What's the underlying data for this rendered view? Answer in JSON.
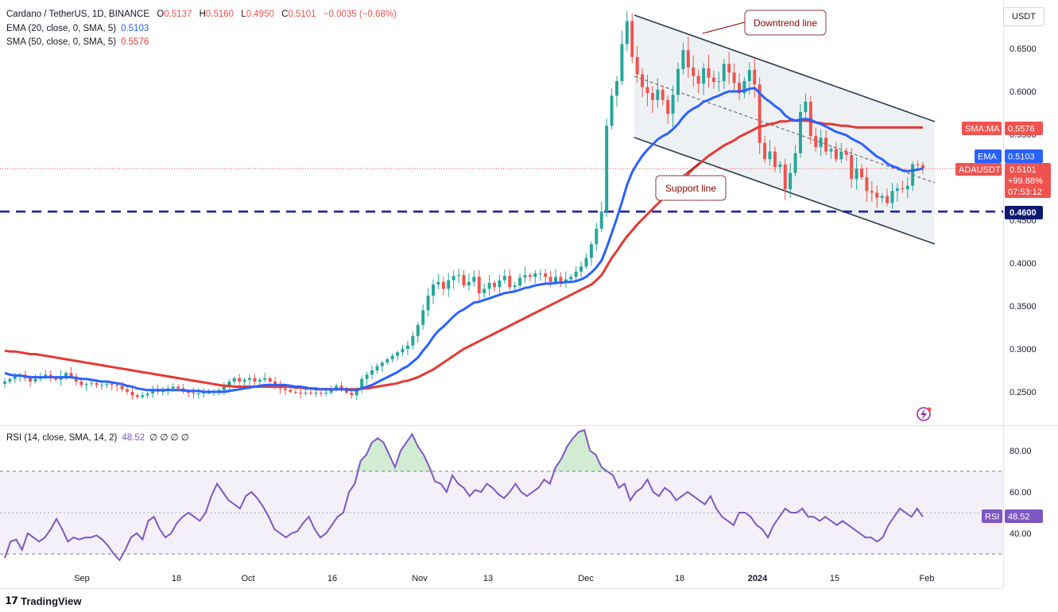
{
  "legend": {
    "symbol": "Cardano / TetherUS, 1D, BINANCE",
    "o_label": "O",
    "o": "0.5137",
    "h_label": "H",
    "h": "0.5160",
    "l_label": "L",
    "l": "0.4950",
    "c_label": "C",
    "c": "0.5101",
    "change": "−0.0035 (−0.68%)",
    "ema_name": "EMA (20, close, 0, SMA, 5)",
    "ema_value": "0.5103",
    "sma_name": "SMA (50, close, 0, SMA, 5)",
    "sma_value": "0.5576",
    "rsi_name": "RSI (14, close, SMA, 14, 2)",
    "rsi_value": "48.52",
    "rsi_extra": "∅ ∅ ∅ ∅"
  },
  "currency_label": "USDT",
  "branding": "TradingView",
  "colors": {
    "up": "#26a69a",
    "down": "#ef5350",
    "ema": "#2962ff",
    "sma": "#e53935",
    "rsi": "#7e57c2",
    "support": "#1e22aa",
    "channel": "#2c3e50"
  },
  "annotations": {
    "downtrend": "Downtrend line",
    "support": "Support line"
  },
  "price_tags": {
    "sma_label": "SMA:MA",
    "sma_value": "0.5576",
    "ema_label": "EMA",
    "ema_value": "0.5103",
    "sym_label": "ADAUSDT",
    "sym_value": "0.5101",
    "sym_change": "+99.88%",
    "sym_timer": "07:53:12",
    "level_value": "0.4600",
    "rsi_label": "RSI",
    "rsi_value": "48.52"
  },
  "chart_data": {
    "type": "candlestick",
    "price_axis": {
      "ticks": [
        "0.6500",
        "0.6000",
        "0.5500",
        "0.5000",
        "0.4500",
        "0.4000",
        "0.3500",
        "0.3000",
        "0.2500"
      ],
      "range": [
        0.21,
        0.7
      ]
    },
    "rsi_axis": {
      "ticks": [
        "80.00",
        "60.00",
        "40.00"
      ],
      "range": [
        25,
        92
      ],
      "bands": [
        30,
        70
      ],
      "mid": 50
    },
    "time_axis": [
      "Sep",
      "18",
      "Oct",
      "16",
      "Nov",
      "13",
      "Dec",
      "18",
      "2024",
      "15",
      "Feb"
    ],
    "horizontal_level": 0.46,
    "channel": {
      "upper": [
        [
          "Dec 9",
          0.69
        ],
        [
          "Feb 1",
          0.57
        ]
      ],
      "lower": [
        [
          "Dec 9",
          0.545
        ],
        [
          "Feb 1",
          0.425
        ]
      ]
    },
    "close": [
      0.262,
      0.265,
      0.268,
      0.27,
      0.266,
      0.262,
      0.265,
      0.268,
      0.27,
      0.266,
      0.264,
      0.268,
      0.272,
      0.268,
      0.262,
      0.258,
      0.259,
      0.26,
      0.258,
      0.258,
      0.259,
      0.258,
      0.257,
      0.253,
      0.25,
      0.246,
      0.244,
      0.246,
      0.248,
      0.252,
      0.25,
      0.252,
      0.254,
      0.256,
      0.254,
      0.25,
      0.249,
      0.248,
      0.248,
      0.249,
      0.249,
      0.25,
      0.252,
      0.256,
      0.262,
      0.266,
      0.262,
      0.264,
      0.266,
      0.262,
      0.264,
      0.266,
      0.262,
      0.258,
      0.254,
      0.252,
      0.25,
      0.249,
      0.248,
      0.249,
      0.248,
      0.249,
      0.248,
      0.249,
      0.252,
      0.257,
      0.252,
      0.249,
      0.246,
      0.254,
      0.265,
      0.27,
      0.275,
      0.28,
      0.284,
      0.288,
      0.292,
      0.296,
      0.3,
      0.304,
      0.315,
      0.328,
      0.345,
      0.362,
      0.375,
      0.378,
      0.37,
      0.38,
      0.385,
      0.386,
      0.374,
      0.378,
      0.384,
      0.365,
      0.37,
      0.377,
      0.372,
      0.38,
      0.385,
      0.372,
      0.374,
      0.383,
      0.386,
      0.384,
      0.388,
      0.388,
      0.384,
      0.378,
      0.384,
      0.378,
      0.381,
      0.384,
      0.39,
      0.396,
      0.406,
      0.422,
      0.44,
      0.46,
      0.56,
      0.595,
      0.612,
      0.655,
      0.682,
      0.64,
      0.62,
      0.605,
      0.598,
      0.59,
      0.602,
      0.59,
      0.574,
      0.596,
      0.626,
      0.648,
      0.628,
      0.618,
      0.609,
      0.627,
      0.616,
      0.611,
      0.612,
      0.632,
      0.622,
      0.61,
      0.598,
      0.612,
      0.625,
      0.608,
      0.54,
      0.521,
      0.53,
      0.512,
      0.515,
      0.486,
      0.505,
      0.528,
      0.576,
      0.588,
      0.548,
      0.535,
      0.546,
      0.53,
      0.533,
      0.521,
      0.53,
      0.526,
      0.498,
      0.51,
      0.5,
      0.484,
      0.482,
      0.476,
      0.478,
      0.47,
      0.484,
      0.487,
      0.486,
      0.49,
      0.515,
      0.514,
      0.51
    ],
    "ema20": [
      0.272,
      0.27,
      0.269,
      0.269,
      0.268,
      0.267,
      0.267,
      0.267,
      0.267,
      0.267,
      0.267,
      0.267,
      0.267,
      0.267,
      0.266,
      0.265,
      0.265,
      0.264,
      0.263,
      0.262,
      0.262,
      0.261,
      0.26,
      0.259,
      0.257,
      0.256,
      0.254,
      0.253,
      0.252,
      0.252,
      0.252,
      0.252,
      0.252,
      0.252,
      0.252,
      0.252,
      0.251,
      0.251,
      0.251,
      0.25,
      0.25,
      0.25,
      0.25,
      0.25,
      0.251,
      0.252,
      0.253,
      0.254,
      0.255,
      0.256,
      0.257,
      0.258,
      0.258,
      0.258,
      0.258,
      0.258,
      0.257,
      0.256,
      0.256,
      0.255,
      0.254,
      0.254,
      0.253,
      0.253,
      0.253,
      0.253,
      0.253,
      0.253,
      0.252,
      0.252,
      0.254,
      0.256,
      0.258,
      0.261,
      0.264,
      0.267,
      0.27,
      0.273,
      0.277,
      0.28,
      0.285,
      0.29,
      0.298,
      0.305,
      0.314,
      0.321,
      0.326,
      0.332,
      0.338,
      0.343,
      0.346,
      0.35,
      0.354,
      0.355,
      0.357,
      0.359,
      0.361,
      0.363,
      0.365,
      0.366,
      0.367,
      0.369,
      0.371,
      0.372,
      0.374,
      0.375,
      0.376,
      0.376,
      0.377,
      0.377,
      0.378,
      0.378,
      0.379,
      0.381,
      0.384,
      0.389,
      0.395,
      0.403,
      0.418,
      0.435,
      0.452,
      0.471,
      0.491,
      0.506,
      0.516,
      0.525,
      0.532,
      0.538,
      0.544,
      0.548,
      0.551,
      0.556,
      0.562,
      0.57,
      0.576,
      0.58,
      0.583,
      0.588,
      0.59,
      0.593,
      0.595,
      0.598,
      0.6,
      0.6,
      0.6,
      0.601,
      0.603,
      0.604,
      0.598,
      0.592,
      0.588,
      0.583,
      0.579,
      0.572,
      0.568,
      0.566,
      0.567,
      0.568,
      0.567,
      0.564,
      0.562,
      0.559,
      0.556,
      0.553,
      0.551,
      0.549,
      0.545,
      0.542,
      0.539,
      0.534,
      0.529,
      0.524,
      0.521,
      0.516,
      0.513,
      0.511,
      0.508,
      0.507,
      0.508,
      0.509,
      0.51
    ],
    "sma50": [
      0.298,
      0.297,
      0.297,
      0.296,
      0.295,
      0.294,
      0.294,
      0.293,
      0.292,
      0.291,
      0.29,
      0.289,
      0.288,
      0.287,
      0.286,
      0.285,
      0.284,
      0.283,
      0.282,
      0.281,
      0.28,
      0.279,
      0.278,
      0.277,
      0.276,
      0.275,
      0.274,
      0.273,
      0.272,
      0.271,
      0.27,
      0.269,
      0.268,
      0.267,
      0.266,
      0.265,
      0.264,
      0.263,
      0.262,
      0.261,
      0.26,
      0.259,
      0.258,
      0.257,
      0.257,
      0.256,
      0.256,
      0.256,
      0.256,
      0.256,
      0.256,
      0.256,
      0.256,
      0.256,
      0.256,
      0.256,
      0.256,
      0.255,
      0.255,
      0.254,
      0.254,
      0.253,
      0.253,
      0.253,
      0.253,
      0.253,
      0.253,
      0.253,
      0.253,
      0.253,
      0.254,
      0.254,
      0.255,
      0.256,
      0.257,
      0.258,
      0.259,
      0.26,
      0.262,
      0.263,
      0.265,
      0.267,
      0.27,
      0.273,
      0.276,
      0.28,
      0.284,
      0.288,
      0.292,
      0.296,
      0.3,
      0.303,
      0.306,
      0.309,
      0.312,
      0.315,
      0.318,
      0.321,
      0.324,
      0.327,
      0.33,
      0.333,
      0.336,
      0.339,
      0.342,
      0.345,
      0.348,
      0.351,
      0.354,
      0.357,
      0.36,
      0.363,
      0.366,
      0.369,
      0.372,
      0.375,
      0.38,
      0.386,
      0.396,
      0.406,
      0.414,
      0.423,
      0.431,
      0.438,
      0.445,
      0.451,
      0.457,
      0.463,
      0.469,
      0.475,
      0.48,
      0.486,
      0.492,
      0.498,
      0.504,
      0.51,
      0.515,
      0.52,
      0.525,
      0.529,
      0.533,
      0.537,
      0.54,
      0.543,
      0.547,
      0.55,
      0.553,
      0.556,
      0.559,
      0.56,
      0.562,
      0.563,
      0.565,
      0.565,
      0.566,
      0.566,
      0.566,
      0.566,
      0.565,
      0.564,
      0.563,
      0.562,
      0.562,
      0.561,
      0.56,
      0.56,
      0.559,
      0.558,
      0.558,
      0.558,
      0.558,
      0.558,
      0.558,
      0.558,
      0.558,
      0.558,
      0.558,
      0.558,
      0.558,
      0.558,
      0.558
    ],
    "rsi": [
      28,
      36,
      37,
      32,
      40,
      38,
      36,
      38,
      42,
      47,
      42,
      36,
      38,
      37,
      38,
      38,
      39,
      37,
      34,
      30,
      27,
      32,
      38,
      40,
      37,
      46,
      48,
      42,
      38,
      40,
      45,
      48,
      50,
      48,
      46,
      50,
      58,
      64,
      60,
      56,
      54,
      52,
      58,
      60,
      57,
      53,
      48,
      42,
      40,
      38,
      40,
      41,
      45,
      48,
      42,
      38,
      40,
      44,
      48,
      50,
      60,
      64,
      75,
      78,
      84,
      86,
      84,
      78,
      72,
      80,
      84,
      88,
      82,
      78,
      72,
      65,
      64,
      60,
      68,
      64,
      62,
      58,
      61,
      60,
      64,
      62,
      59,
      57,
      60,
      64,
      60,
      58,
      60,
      62,
      66,
      64,
      72,
      76,
      82,
      86,
      89,
      90,
      80,
      78,
      72,
      70,
      68,
      62,
      64,
      56,
      60,
      62,
      66,
      60,
      58,
      62,
      60,
      56,
      58,
      60,
      58,
      56,
      54,
      58,
      52,
      48,
      46,
      44,
      50,
      50,
      48,
      44,
      42,
      38,
      44,
      48,
      52,
      50,
      50,
      52,
      48,
      48,
      46,
      48,
      46,
      44,
      46,
      44,
      42,
      40,
      38,
      38,
      36,
      38,
      44,
      48,
      52,
      50,
      48,
      52,
      48
    ]
  }
}
